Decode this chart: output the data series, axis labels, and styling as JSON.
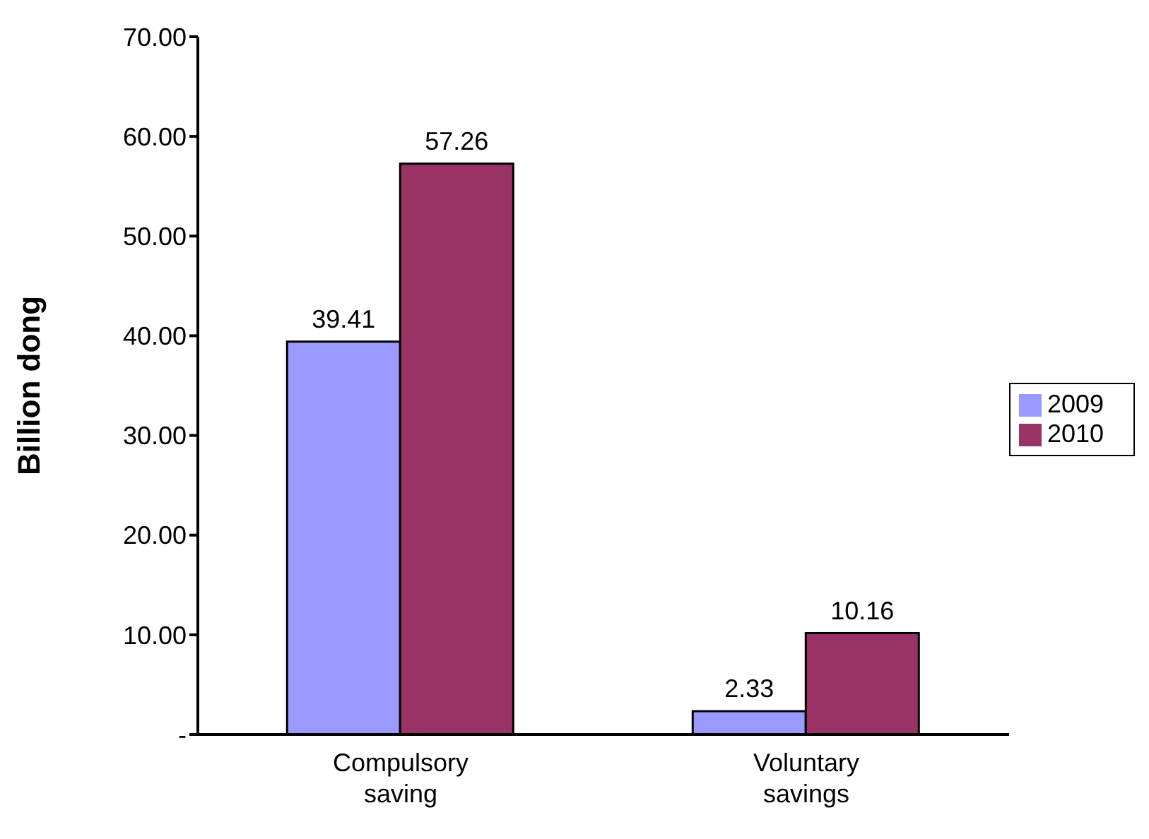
{
  "chart_data": {
    "type": "bar",
    "ylabel": "Billion dong",
    "categories": [
      "Compulsory saving",
      "Voluntary savings"
    ],
    "series": [
      {
        "name": "2009",
        "color": "#9999ff",
        "values": [
          39.41,
          2.33
        ]
      },
      {
        "name": "2010",
        "color": "#993366",
        "values": [
          57.26,
          10.16
        ]
      }
    ],
    "ylim": [
      0,
      70
    ],
    "yticks": [
      {
        "value": 0,
        "label": "-"
      },
      {
        "value": 10,
        "label": "10.00"
      },
      {
        "value": 20,
        "label": "20.00"
      },
      {
        "value": 30,
        "label": "30.00"
      },
      {
        "value": 40,
        "label": "40.00"
      },
      {
        "value": 50,
        "label": "50.00"
      },
      {
        "value": 60,
        "label": "60.00"
      },
      {
        "value": 70,
        "label": "70.00"
      }
    ],
    "grid": false,
    "legend": "right",
    "data_labels": true
  }
}
